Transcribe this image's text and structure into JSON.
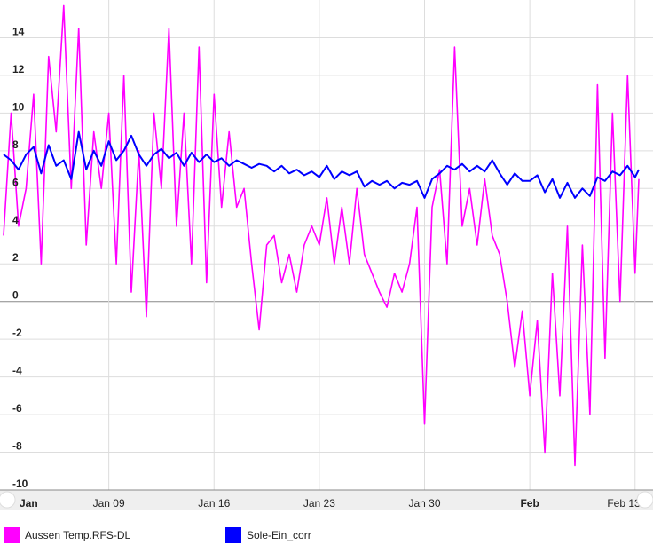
{
  "chart_data": {
    "type": "line",
    "title": "",
    "xlabel": "",
    "ylabel": "",
    "ylim": [
      -10,
      16
    ],
    "xlim": [
      "2024-01-02T00:00",
      "2024-02-13T06:00"
    ],
    "y_ticks": [
      14,
      12,
      10,
      8,
      6,
      4,
      2,
      0,
      -2,
      -4,
      -6,
      -8,
      -10
    ],
    "x_ticks": [
      {
        "label": "Jan",
        "date": "2024-01-02",
        "bold": true
      },
      {
        "label": "Jan 09",
        "date": "2024-01-09",
        "bold": false
      },
      {
        "label": "Jan 16",
        "date": "2024-01-16",
        "bold": false
      },
      {
        "label": "Jan 23",
        "date": "2024-01-23",
        "bold": false
      },
      {
        "label": "Jan 30",
        "date": "2024-01-30",
        "bold": false
      },
      {
        "label": "Feb",
        "date": "2024-02-06",
        "bold": true
      },
      {
        "label": "Feb 13",
        "date": "2024-02-13",
        "bold": false
      }
    ],
    "grid": true,
    "legend_position": "bottom-left",
    "series": [
      {
        "name": "Aussen Temp.RFS-DL",
        "color": "#ff00ff",
        "points": [
          [
            "2024-01-02T00:00",
            3.5
          ],
          [
            "2024-01-02T12:00",
            10.0
          ],
          [
            "2024-01-03T00:00",
            4.0
          ],
          [
            "2024-01-03T12:00",
            6.0
          ],
          [
            "2024-01-04T00:00",
            11.0
          ],
          [
            "2024-01-04T12:00",
            2.0
          ],
          [
            "2024-01-05T00:00",
            13.0
          ],
          [
            "2024-01-05T12:00",
            9.0
          ],
          [
            "2024-01-06T00:00",
            15.7
          ],
          [
            "2024-01-06T12:00",
            6.0
          ],
          [
            "2024-01-07T00:00",
            14.5
          ],
          [
            "2024-01-07T12:00",
            3.0
          ],
          [
            "2024-01-08T00:00",
            9.0
          ],
          [
            "2024-01-08T12:00",
            6.0
          ],
          [
            "2024-01-09T00:00",
            10.0
          ],
          [
            "2024-01-09T12:00",
            2.0
          ],
          [
            "2024-01-10T00:00",
            12.0
          ],
          [
            "2024-01-10T12:00",
            0.5
          ],
          [
            "2024-01-11T00:00",
            8.0
          ],
          [
            "2024-01-11T12:00",
            -0.8
          ],
          [
            "2024-01-12T00:00",
            10.0
          ],
          [
            "2024-01-12T12:00",
            6.0
          ],
          [
            "2024-01-13T00:00",
            14.5
          ],
          [
            "2024-01-13T12:00",
            4.0
          ],
          [
            "2024-01-14T00:00",
            10.0
          ],
          [
            "2024-01-14T12:00",
            2.0
          ],
          [
            "2024-01-15T00:00",
            13.5
          ],
          [
            "2024-01-15T12:00",
            1.0
          ],
          [
            "2024-01-16T00:00",
            11.0
          ],
          [
            "2024-01-16T12:00",
            5.0
          ],
          [
            "2024-01-17T00:00",
            9.0
          ],
          [
            "2024-01-17T12:00",
            5.0
          ],
          [
            "2024-01-18T00:00",
            6.0
          ],
          [
            "2024-01-18T12:00",
            2.0
          ],
          [
            "2024-01-19T00:00",
            -1.5
          ],
          [
            "2024-01-19T12:00",
            3.0
          ],
          [
            "2024-01-20T00:00",
            3.5
          ],
          [
            "2024-01-20T12:00",
            1.0
          ],
          [
            "2024-01-21T00:00",
            2.5
          ],
          [
            "2024-01-21T12:00",
            0.5
          ],
          [
            "2024-01-22T00:00",
            3.0
          ],
          [
            "2024-01-22T12:00",
            4.0
          ],
          [
            "2024-01-23T00:00",
            3.0
          ],
          [
            "2024-01-23T12:00",
            5.5
          ],
          [
            "2024-01-24T00:00",
            2.0
          ],
          [
            "2024-01-24T12:00",
            5.0
          ],
          [
            "2024-01-25T00:00",
            2.0
          ],
          [
            "2024-01-25T12:00",
            6.0
          ],
          [
            "2024-01-26T00:00",
            2.5
          ],
          [
            "2024-01-26T12:00",
            1.5
          ],
          [
            "2024-01-27T00:00",
            0.5
          ],
          [
            "2024-01-27T12:00",
            -0.3
          ],
          [
            "2024-01-28T00:00",
            1.5
          ],
          [
            "2024-01-28T12:00",
            0.5
          ],
          [
            "2024-01-29T00:00",
            2.0
          ],
          [
            "2024-01-29T12:00",
            5.0
          ],
          [
            "2024-01-30T00:00",
            -6.5
          ],
          [
            "2024-01-30T12:00",
            5.0
          ],
          [
            "2024-01-31T00:00",
            7.0
          ],
          [
            "2024-01-31T12:00",
            2.0
          ],
          [
            "2024-02-01T00:00",
            13.5
          ],
          [
            "2024-02-01T12:00",
            4.0
          ],
          [
            "2024-02-02T00:00",
            6.0
          ],
          [
            "2024-02-02T12:00",
            3.0
          ],
          [
            "2024-02-03T00:00",
            6.5
          ],
          [
            "2024-02-03T12:00",
            3.5
          ],
          [
            "2024-02-04T00:00",
            2.5
          ],
          [
            "2024-02-04T12:00",
            0.0
          ],
          [
            "2024-02-05T00:00",
            -3.5
          ],
          [
            "2024-02-05T12:00",
            -0.5
          ],
          [
            "2024-02-06T00:00",
            -5.0
          ],
          [
            "2024-02-06T12:00",
            -1.0
          ],
          [
            "2024-02-07T00:00",
            -8.0
          ],
          [
            "2024-02-07T12:00",
            1.5
          ],
          [
            "2024-02-08T00:00",
            -5.0
          ],
          [
            "2024-02-08T12:00",
            4.0
          ],
          [
            "2024-02-09T00:00",
            -8.7
          ],
          [
            "2024-02-09T12:00",
            3.0
          ],
          [
            "2024-02-10T00:00",
            -6.0
          ],
          [
            "2024-02-10T12:00",
            11.5
          ],
          [
            "2024-02-11T00:00",
            -3.0
          ],
          [
            "2024-02-11T12:00",
            10.0
          ],
          [
            "2024-02-12T00:00",
            0.0
          ],
          [
            "2024-02-12T12:00",
            12.0
          ],
          [
            "2024-02-13T00:00",
            1.5
          ],
          [
            "2024-02-13T06:00",
            6.5
          ]
        ]
      },
      {
        "name": "Sole-Ein_corr",
        "color": "#0000ff",
        "points": [
          [
            "2024-01-02T00:00",
            7.8
          ],
          [
            "2024-01-02T12:00",
            7.5
          ],
          [
            "2024-01-03T00:00",
            7.0
          ],
          [
            "2024-01-03T12:00",
            7.8
          ],
          [
            "2024-01-04T00:00",
            8.2
          ],
          [
            "2024-01-04T12:00",
            6.8
          ],
          [
            "2024-01-05T00:00",
            8.3
          ],
          [
            "2024-01-05T12:00",
            7.2
          ],
          [
            "2024-01-06T00:00",
            7.5
          ],
          [
            "2024-01-06T12:00",
            6.5
          ],
          [
            "2024-01-07T00:00",
            9.0
          ],
          [
            "2024-01-07T12:00",
            7.0
          ],
          [
            "2024-01-08T00:00",
            8.0
          ],
          [
            "2024-01-08T12:00",
            7.2
          ],
          [
            "2024-01-09T00:00",
            8.5
          ],
          [
            "2024-01-09T12:00",
            7.5
          ],
          [
            "2024-01-10T00:00",
            8.0
          ],
          [
            "2024-01-10T12:00",
            8.8
          ],
          [
            "2024-01-11T00:00",
            7.8
          ],
          [
            "2024-01-11T12:00",
            7.2
          ],
          [
            "2024-01-12T00:00",
            7.8
          ],
          [
            "2024-01-12T12:00",
            8.1
          ],
          [
            "2024-01-13T00:00",
            7.6
          ],
          [
            "2024-01-13T12:00",
            7.9
          ],
          [
            "2024-01-14T00:00",
            7.2
          ],
          [
            "2024-01-14T12:00",
            7.9
          ],
          [
            "2024-01-15T00:00",
            7.4
          ],
          [
            "2024-01-15T12:00",
            7.8
          ],
          [
            "2024-01-16T00:00",
            7.4
          ],
          [
            "2024-01-16T12:00",
            7.6
          ],
          [
            "2024-01-17T00:00",
            7.2
          ],
          [
            "2024-01-17T12:00",
            7.5
          ],
          [
            "2024-01-18T00:00",
            7.3
          ],
          [
            "2024-01-18T12:00",
            7.1
          ],
          [
            "2024-01-19T00:00",
            7.3
          ],
          [
            "2024-01-19T12:00",
            7.2
          ],
          [
            "2024-01-20T00:00",
            6.9
          ],
          [
            "2024-01-20T12:00",
            7.2
          ],
          [
            "2024-01-21T00:00",
            6.8
          ],
          [
            "2024-01-21T12:00",
            7.0
          ],
          [
            "2024-01-22T00:00",
            6.7
          ],
          [
            "2024-01-22T12:00",
            6.9
          ],
          [
            "2024-01-23T00:00",
            6.6
          ],
          [
            "2024-01-23T12:00",
            7.2
          ],
          [
            "2024-01-24T00:00",
            6.5
          ],
          [
            "2024-01-24T12:00",
            6.9
          ],
          [
            "2024-01-25T00:00",
            6.7
          ],
          [
            "2024-01-25T12:00",
            6.9
          ],
          [
            "2024-01-26T00:00",
            6.1
          ],
          [
            "2024-01-26T12:00",
            6.4
          ],
          [
            "2024-01-27T00:00",
            6.2
          ],
          [
            "2024-01-27T12:00",
            6.4
          ],
          [
            "2024-01-28T00:00",
            6.0
          ],
          [
            "2024-01-28T12:00",
            6.3
          ],
          [
            "2024-01-29T00:00",
            6.2
          ],
          [
            "2024-01-29T12:00",
            6.4
          ],
          [
            "2024-01-30T00:00",
            5.5
          ],
          [
            "2024-01-30T12:00",
            6.5
          ],
          [
            "2024-01-31T00:00",
            6.8
          ],
          [
            "2024-01-31T12:00",
            7.2
          ],
          [
            "2024-02-01T00:00",
            7.0
          ],
          [
            "2024-02-01T12:00",
            7.3
          ],
          [
            "2024-02-02T00:00",
            6.9
          ],
          [
            "2024-02-02T12:00",
            7.2
          ],
          [
            "2024-02-03T00:00",
            6.9
          ],
          [
            "2024-02-03T12:00",
            7.5
          ],
          [
            "2024-02-04T00:00",
            6.8
          ],
          [
            "2024-02-04T12:00",
            6.2
          ],
          [
            "2024-02-05T00:00",
            6.8
          ],
          [
            "2024-02-05T12:00",
            6.4
          ],
          [
            "2024-02-06T00:00",
            6.4
          ],
          [
            "2024-02-06T12:00",
            6.7
          ],
          [
            "2024-02-07T00:00",
            5.8
          ],
          [
            "2024-02-07T12:00",
            6.5
          ],
          [
            "2024-02-08T00:00",
            5.5
          ],
          [
            "2024-02-08T12:00",
            6.3
          ],
          [
            "2024-02-09T00:00",
            5.5
          ],
          [
            "2024-02-09T12:00",
            6.0
          ],
          [
            "2024-02-10T00:00",
            5.6
          ],
          [
            "2024-02-10T12:00",
            6.6
          ],
          [
            "2024-02-11T00:00",
            6.4
          ],
          [
            "2024-02-11T12:00",
            6.9
          ],
          [
            "2024-02-12T00:00",
            6.7
          ],
          [
            "2024-02-12T12:00",
            7.2
          ],
          [
            "2024-02-13T00:00",
            6.6
          ],
          [
            "2024-02-13T06:00",
            7.0
          ]
        ]
      }
    ]
  }
}
